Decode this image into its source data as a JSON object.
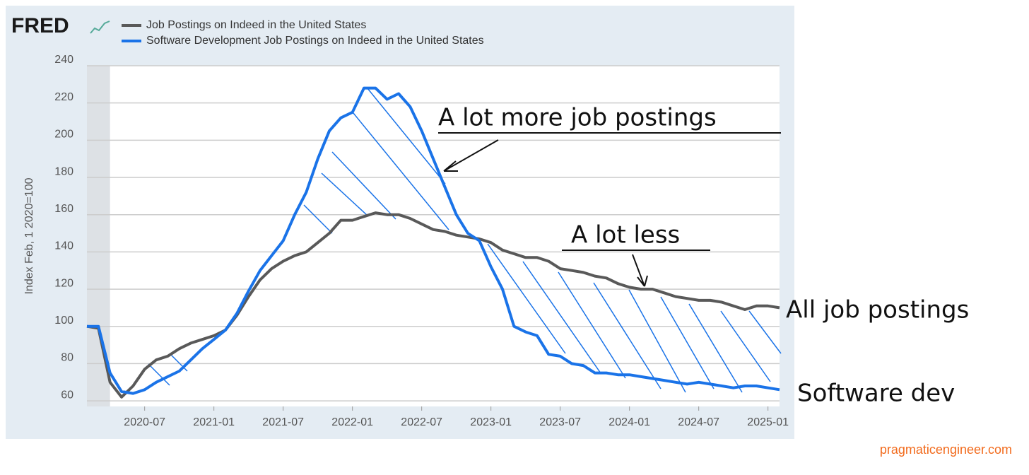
{
  "chart_data": {
    "type": "line",
    "logo": "FRED",
    "y_label": "Index Feb, 1 2020=100",
    "x": [
      "2020-02",
      "2020-03",
      "2020-04",
      "2020-05",
      "2020-06",
      "2020-07",
      "2020-08",
      "2020-09",
      "2020-10",
      "2020-11",
      "2020-12",
      "2021-01",
      "2021-02",
      "2021-03",
      "2021-04",
      "2021-05",
      "2021-06",
      "2021-07",
      "2021-08",
      "2021-09",
      "2021-10",
      "2021-11",
      "2021-12",
      "2022-01",
      "2022-02",
      "2022-03",
      "2022-04",
      "2022-05",
      "2022-06",
      "2022-07",
      "2022-08",
      "2022-09",
      "2022-10",
      "2022-11",
      "2022-12",
      "2023-01",
      "2023-02",
      "2023-03",
      "2023-04",
      "2023-05",
      "2023-06",
      "2023-07",
      "2023-08",
      "2023-09",
      "2023-10",
      "2023-11",
      "2023-12",
      "2024-01",
      "2024-02",
      "2024-03",
      "2024-04",
      "2024-05",
      "2024-06",
      "2024-07",
      "2024-08",
      "2024-09",
      "2024-10",
      "2024-11",
      "2024-12",
      "2025-01",
      "2025-02"
    ],
    "series": [
      {
        "name": "Job Postings on Indeed in the United States",
        "color": "#595959",
        "values": [
          100,
          99,
          70,
          62,
          68,
          77,
          82,
          84,
          88,
          91,
          93,
          95,
          98,
          106,
          116,
          125,
          131,
          135,
          138,
          140,
          145,
          150,
          157,
          157,
          159,
          161,
          160,
          160,
          158,
          155,
          152,
          151,
          149,
          148,
          147,
          145,
          141,
          139,
          137,
          137,
          135,
          131,
          130,
          129,
          127,
          126,
          123,
          121,
          120,
          120,
          118,
          116,
          115,
          114,
          114,
          113,
          111,
          109,
          111,
          111,
          110
        ]
      },
      {
        "name": "Software Development Job Postings on Indeed in the United States",
        "color": "#1a73e8",
        "values": [
          100,
          100,
          75,
          65,
          64,
          66,
          70,
          73,
          76,
          82,
          88,
          93,
          98,
          107,
          119,
          130,
          138,
          146,
          160,
          172,
          190,
          205,
          212,
          215,
          228,
          228,
          222,
          225,
          218,
          205,
          190,
          175,
          160,
          150,
          146,
          132,
          120,
          100,
          97,
          95,
          85,
          84,
          80,
          79,
          75,
          75,
          74,
          74,
          73,
          72,
          71,
          70,
          69,
          70,
          69,
          68,
          67,
          68,
          68,
          67,
          66
        ]
      }
    ],
    "xlim": [
      "2020-02",
      "2025-02"
    ],
    "xticks": [
      "2020-07",
      "2021-01",
      "2021-07",
      "2022-01",
      "2022-07",
      "2023-01",
      "2023-07",
      "2024-01",
      "2024-07",
      "2025-01"
    ],
    "ylim": [
      57,
      240
    ],
    "yticks": [
      60,
      80,
      100,
      120,
      140,
      160,
      180,
      200,
      220,
      240
    ],
    "grid": true,
    "shaded_periods": [
      [
        "2020-02",
        "2020-04"
      ]
    ],
    "annotations": [
      "A lot more job postings",
      "A lot less",
      "All job postings",
      "Software dev"
    ],
    "source": "pragmaticengineer.com"
  }
}
